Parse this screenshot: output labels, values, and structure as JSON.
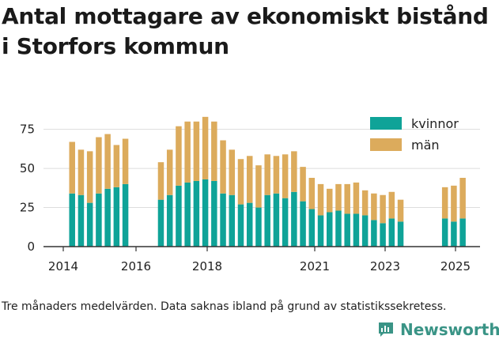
{
  "title": "Antal mottagare av ekonomiskt bistånd i Storfors kommun",
  "footnote": "Tre månaders medelvärden. Data saknas ibland på grund av statistikssekretess.",
  "brand": {
    "name": "Newsworthy",
    "icon": "newsworthy-logo-icon"
  },
  "colors": {
    "kvinnor": "#0fa398",
    "man": "#dcab5c",
    "grid": "#dddddd"
  },
  "chart_data": {
    "type": "bar",
    "stacked": true,
    "x_type": "date",
    "y_ticks": [
      0,
      25,
      50,
      75
    ],
    "x_ticks": [
      "2014",
      "2016",
      "2018",
      "2021",
      "2023",
      "2025"
    ],
    "ylim": [
      0,
      90
    ],
    "grid": true,
    "legend_position": "top-right",
    "series": [
      {
        "name": "kvinnor",
        "color": "#0fa398"
      },
      {
        "name": "män",
        "color": "#dcab5c"
      }
    ],
    "points": [
      {
        "date": "2014-04",
        "kvinnor": 34,
        "man": 33
      },
      {
        "date": "2014-07",
        "kvinnor": 33,
        "man": 29
      },
      {
        "date": "2014-10",
        "kvinnor": 28,
        "man": 33
      },
      {
        "date": "2015-01",
        "kvinnor": 34,
        "man": 36
      },
      {
        "date": "2015-04",
        "kvinnor": 37,
        "man": 35
      },
      {
        "date": "2015-07",
        "kvinnor": 38,
        "man": 27
      },
      {
        "date": "2015-10",
        "kvinnor": 40,
        "man": 29
      },
      {
        "date": "2016-10",
        "kvinnor": 30,
        "man": 24
      },
      {
        "date": "2017-01",
        "kvinnor": 33,
        "man": 29
      },
      {
        "date": "2017-04",
        "kvinnor": 39,
        "man": 38
      },
      {
        "date": "2017-07",
        "kvinnor": 41,
        "man": 39
      },
      {
        "date": "2017-10",
        "kvinnor": 42,
        "man": 38
      },
      {
        "date": "2018-01",
        "kvinnor": 43,
        "man": 40
      },
      {
        "date": "2018-04",
        "kvinnor": 42,
        "man": 38
      },
      {
        "date": "2018-07",
        "kvinnor": 34,
        "man": 34
      },
      {
        "date": "2018-10",
        "kvinnor": 33,
        "man": 29
      },
      {
        "date": "2019-01",
        "kvinnor": 27,
        "man": 29
      },
      {
        "date": "2019-04",
        "kvinnor": 28,
        "man": 30
      },
      {
        "date": "2019-07",
        "kvinnor": 25,
        "man": 27
      },
      {
        "date": "2019-10",
        "kvinnor": 33,
        "man": 26
      },
      {
        "date": "2020-01",
        "kvinnor": 34,
        "man": 24
      },
      {
        "date": "2020-04",
        "kvinnor": 31,
        "man": 28
      },
      {
        "date": "2020-07",
        "kvinnor": 35,
        "man": 26
      },
      {
        "date": "2020-10",
        "kvinnor": 29,
        "man": 22
      },
      {
        "date": "2021-01",
        "kvinnor": 24,
        "man": 20
      },
      {
        "date": "2021-04",
        "kvinnor": 20,
        "man": 20
      },
      {
        "date": "2021-07",
        "kvinnor": 22,
        "man": 15
      },
      {
        "date": "2021-10",
        "kvinnor": 23,
        "man": 17
      },
      {
        "date": "2022-01",
        "kvinnor": 21,
        "man": 19
      },
      {
        "date": "2022-04",
        "kvinnor": 21,
        "man": 20
      },
      {
        "date": "2022-07",
        "kvinnor": 20,
        "man": 16
      },
      {
        "date": "2022-10",
        "kvinnor": 17,
        "man": 17
      },
      {
        "date": "2023-01",
        "kvinnor": 15,
        "man": 18
      },
      {
        "date": "2023-04",
        "kvinnor": 18,
        "man": 17
      },
      {
        "date": "2023-07",
        "kvinnor": 16,
        "man": 14
      },
      {
        "date": "2024-10",
        "kvinnor": 18,
        "man": 20
      },
      {
        "date": "2025-01",
        "kvinnor": 16,
        "man": 23
      },
      {
        "date": "2025-04",
        "kvinnor": 18,
        "man": 26
      }
    ]
  }
}
